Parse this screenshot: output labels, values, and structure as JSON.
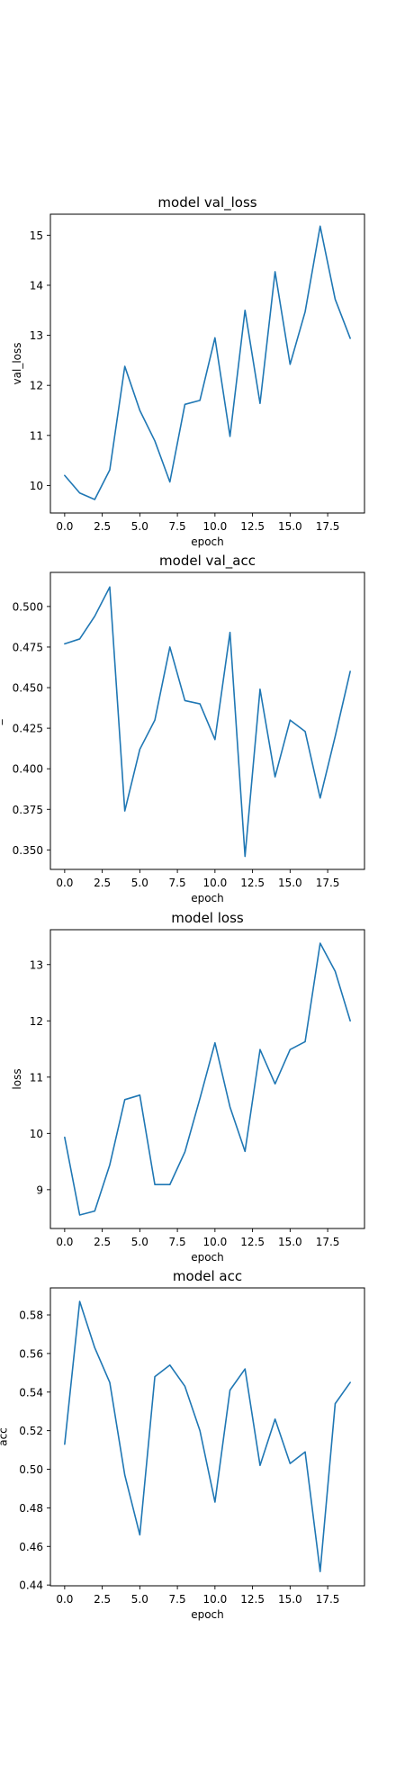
{
  "chart_data": [
    {
      "type": "line",
      "title": "model val_loss",
      "xlabel": "epoch",
      "ylabel": "val_loss",
      "xlim": [
        -0.95,
        19.95
      ],
      "ylim": [
        9.45,
        15.42
      ],
      "xticks": [
        0.0,
        2.5,
        5.0,
        7.5,
        10.0,
        12.5,
        15.0,
        17.5
      ],
      "xtick_labels": [
        "0.0",
        "2.5",
        "5.0",
        "7.5",
        "10.0",
        "12.5",
        "15.0",
        "17.5"
      ],
      "yticks": [
        10,
        11,
        12,
        13,
        14,
        15
      ],
      "ytick_labels": [
        "10",
        "11",
        "12",
        "13",
        "14",
        "15"
      ],
      "series": [
        {
          "color": "#1f77b4",
          "x": [
            0,
            1,
            2,
            3,
            4,
            5,
            6,
            7,
            8,
            9,
            10,
            11,
            12,
            13,
            14,
            15,
            16,
            17,
            18,
            19
          ],
          "y": [
            10.2,
            9.85,
            9.72,
            10.31,
            12.38,
            11.5,
            10.89,
            10.07,
            11.62,
            11.7,
            12.95,
            10.98,
            13.5,
            11.64,
            14.27,
            12.42,
            13.47,
            15.18,
            13.72,
            12.94
          ]
        }
      ]
    },
    {
      "type": "line",
      "title": "model val_acc",
      "xlabel": "epoch",
      "ylabel": "val_acc",
      "xlim": [
        -0.95,
        19.95
      ],
      "ylim": [
        0.338,
        0.521
      ],
      "xticks": [
        0.0,
        2.5,
        5.0,
        7.5,
        10.0,
        12.5,
        15.0,
        17.5
      ],
      "xtick_labels": [
        "0.0",
        "2.5",
        "5.0",
        "7.5",
        "10.0",
        "12.5",
        "15.0",
        "17.5"
      ],
      "yticks": [
        0.35,
        0.375,
        0.4,
        0.425,
        0.45,
        0.475,
        0.5
      ],
      "ytick_labels": [
        "0.350",
        "0.375",
        "0.400",
        "0.425",
        "0.450",
        "0.475",
        "0.500"
      ],
      "series": [
        {
          "color": "#1f77b4",
          "x": [
            0,
            1,
            2,
            3,
            4,
            5,
            6,
            7,
            8,
            9,
            10,
            11,
            12,
            13,
            14,
            15,
            16,
            17,
            18,
            19
          ],
          "y": [
            0.477,
            0.48,
            0.494,
            0.512,
            0.374,
            0.412,
            0.43,
            0.475,
            0.442,
            0.44,
            0.418,
            0.484,
            0.346,
            0.449,
            0.395,
            0.43,
            0.423,
            0.382,
            0.42,
            0.46
          ]
        }
      ]
    },
    {
      "type": "line",
      "title": "model loss",
      "xlabel": "epoch",
      "ylabel": "loss",
      "xlim": [
        -0.95,
        19.95
      ],
      "ylim": [
        8.31,
        13.62
      ],
      "xticks": [
        0.0,
        2.5,
        5.0,
        7.5,
        10.0,
        12.5,
        15.0,
        17.5
      ],
      "xtick_labels": [
        "0.0",
        "2.5",
        "5.0",
        "7.5",
        "10.0",
        "12.5",
        "15.0",
        "17.5"
      ],
      "yticks": [
        9,
        10,
        11,
        12,
        13
      ],
      "ytick_labels": [
        "9",
        "10",
        "11",
        "12",
        "13"
      ],
      "series": [
        {
          "color": "#1f77b4",
          "x": [
            0,
            1,
            2,
            3,
            4,
            5,
            6,
            7,
            8,
            9,
            10,
            11,
            12,
            13,
            14,
            15,
            16,
            17,
            18,
            19
          ],
          "y": [
            9.93,
            8.55,
            8.62,
            9.44,
            10.6,
            10.68,
            9.09,
            9.09,
            9.67,
            10.62,
            11.61,
            10.47,
            9.68,
            11.49,
            10.88,
            11.49,
            11.63,
            13.38,
            12.88,
            12.0
          ]
        }
      ]
    },
    {
      "type": "line",
      "title": "model acc",
      "xlabel": "epoch",
      "ylabel": "acc",
      "xlim": [
        -0.95,
        19.95
      ],
      "ylim": [
        0.4396,
        0.594
      ],
      "xticks": [
        0.0,
        2.5,
        5.0,
        7.5,
        10.0,
        12.5,
        15.0,
        17.5
      ],
      "xtick_labels": [
        "0.0",
        "2.5",
        "5.0",
        "7.5",
        "10.0",
        "12.5",
        "15.0",
        "17.5"
      ],
      "yticks": [
        0.44,
        0.46,
        0.48,
        0.5,
        0.52,
        0.54,
        0.56,
        0.58
      ],
      "ytick_labels": [
        "0.44",
        "0.46",
        "0.48",
        "0.50",
        "0.52",
        "0.54",
        "0.56",
        "0.58"
      ],
      "series": [
        {
          "color": "#1f77b4",
          "x": [
            0,
            1,
            2,
            3,
            4,
            5,
            6,
            7,
            8,
            9,
            10,
            11,
            12,
            13,
            14,
            15,
            16,
            17,
            18,
            19
          ],
          "y": [
            0.513,
            0.587,
            0.563,
            0.545,
            0.497,
            0.466,
            0.548,
            0.554,
            0.543,
            0.52,
            0.483,
            0.541,
            0.552,
            0.502,
            0.526,
            0.503,
            0.509,
            0.447,
            0.534,
            0.545
          ]
        }
      ]
    }
  ]
}
